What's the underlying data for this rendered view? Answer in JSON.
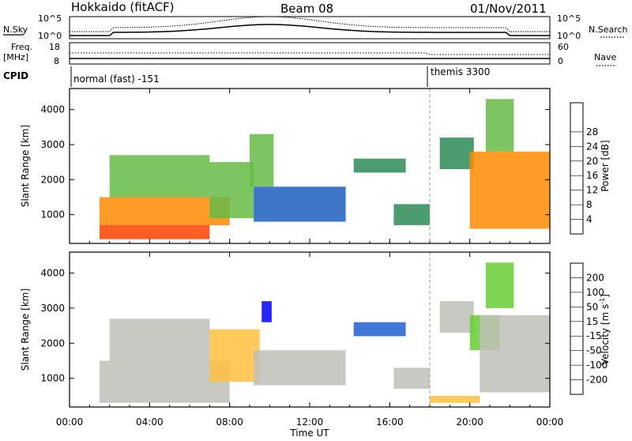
{
  "header": {
    "station": "Hokkaido (fitACF)",
    "beam": "Beam 08",
    "date": "01/Nov/2011"
  },
  "summary": {
    "nsky_label": "N.Sky",
    "nsearch_label": "N.Search",
    "nsky_ticks": [
      "10^5",
      "10^0"
    ],
    "nsearch_ticks": [
      "10^5",
      "10^0"
    ],
    "freq_label_1": "Freq.",
    "freq_label_2": "[MHz]",
    "freq_ticks": [
      "18",
      "8"
    ],
    "nave_label": "Nave",
    "nave_ticks": [
      "60",
      "0"
    ],
    "cpid_label": "CPID",
    "cpid_segments": [
      {
        "label": "normal (fast) -151",
        "start_h": 0,
        "end_h": 18
      },
      {
        "label": "themis 3300",
        "start_h": 18,
        "end_h": 24
      }
    ]
  },
  "chart_data": [
    {
      "type": "heatmap",
      "title": "Power",
      "ylabel": "Slant Range [km]",
      "xlabel": "Time UT",
      "xlim": [
        "00:00",
        "00:00"
      ],
      "ylim": [
        180,
        4600
      ],
      "y_ticks": [
        1000,
        2000,
        3000,
        4000
      ],
      "x_ticks": [
        "00:00",
        "04:00",
        "08:00",
        "12:00",
        "16:00",
        "20:00",
        "00:00"
      ],
      "colorbar": {
        "label": "Power [dB]",
        "ticks": [
          4,
          8,
          12,
          16,
          20,
          24,
          28
        ],
        "colors": [
          "#0000ff",
          "#1c5fc0",
          "#2e8b57",
          "#66bb44",
          "#c8d84a",
          "#ffc000",
          "#ff8a00",
          "#ff4000",
          "#ff0000"
        ]
      },
      "regions": [
        {
          "t": [
            1.5,
            7.0
          ],
          "r": [
            300,
            700
          ],
          "level": 28
        },
        {
          "t": [
            1.5,
            8.0
          ],
          "r": [
            700,
            1500
          ],
          "level": 26
        },
        {
          "t": [
            2.0,
            7.0
          ],
          "r": [
            1500,
            2700
          ],
          "level": 14
        },
        {
          "t": [
            7.0,
            9.2
          ],
          "r": [
            900,
            2500
          ],
          "level": 12
        },
        {
          "t": [
            9.0,
            10.2
          ],
          "r": [
            1800,
            3300
          ],
          "level": 14
        },
        {
          "t": [
            9.2,
            13.8
          ],
          "r": [
            800,
            1800
          ],
          "level": 6
        },
        {
          "t": [
            14.2,
            16.8
          ],
          "r": [
            2200,
            2600
          ],
          "level": 8
        },
        {
          "t": [
            16.2,
            18.0
          ],
          "r": [
            700,
            1300
          ],
          "level": 10
        },
        {
          "t": [
            18.5,
            20.2
          ],
          "r": [
            2300,
            3200
          ],
          "level": 8
        },
        {
          "t": [
            20.0,
            24.0
          ],
          "r": [
            600,
            2800
          ],
          "level": 26
        },
        {
          "t": [
            20.8,
            22.2
          ],
          "r": [
            2800,
            4300
          ],
          "level": 14
        }
      ]
    },
    {
      "type": "heatmap",
      "title": "Velocity",
      "ylabel": "Slant Range [km]",
      "xlabel": "Time UT",
      "xlim": [
        "00:00",
        "00:00"
      ],
      "ylim": [
        180,
        4600
      ],
      "y_ticks": [
        1000,
        2000,
        3000,
        4000
      ],
      "x_ticks": [
        "00:00",
        "04:00",
        "08:00",
        "12:00",
        "16:00",
        "20:00",
        "00:00"
      ],
      "colorbar": {
        "label": "Velocity [m s",
        "label_sup": "-1",
        "label_end": "]",
        "ticks": [
          "200",
          "100",
          "50",
          "15",
          "-15",
          "-50",
          "-100",
          "-200"
        ],
        "colors": [
          "#0000ff",
          "#2060d0",
          "#308040",
          "#66cc33",
          "#c0c0b8",
          "#ffc040",
          "#ff9000",
          "#ff5000",
          "#ff0000"
        ]
      },
      "regions": [
        {
          "t": [
            1.5,
            8.0
          ],
          "r": [
            300,
            1500
          ],
          "level": 0
        },
        {
          "t": [
            2.0,
            7.0
          ],
          "r": [
            1500,
            2700
          ],
          "level": 0
        },
        {
          "t": [
            7.0,
            9.5
          ],
          "r": [
            900,
            2400
          ],
          "level": -20
        },
        {
          "t": [
            9.6,
            10.1
          ],
          "r": [
            2600,
            3200
          ],
          "level": 200
        },
        {
          "t": [
            9.2,
            13.8
          ],
          "r": [
            800,
            1800
          ],
          "level": 0
        },
        {
          "t": [
            14.2,
            16.8
          ],
          "r": [
            2200,
            2600
          ],
          "level": 150
        },
        {
          "t": [
            16.2,
            18.0
          ],
          "r": [
            700,
            1300
          ],
          "level": 0
        },
        {
          "t": [
            18.0,
            20.5
          ],
          "r": [
            300,
            500
          ],
          "level": -40
        },
        {
          "t": [
            18.5,
            20.2
          ],
          "r": [
            2300,
            3200
          ],
          "level": 0
        },
        {
          "t": [
            20.0,
            21.5
          ],
          "r": [
            1800,
            2800
          ],
          "level": 40
        },
        {
          "t": [
            20.5,
            24.0
          ],
          "r": [
            600,
            2800
          ],
          "level": 0
        },
        {
          "t": [
            20.8,
            22.2
          ],
          "r": [
            3000,
            4300
          ],
          "level": 40
        }
      ]
    }
  ]
}
